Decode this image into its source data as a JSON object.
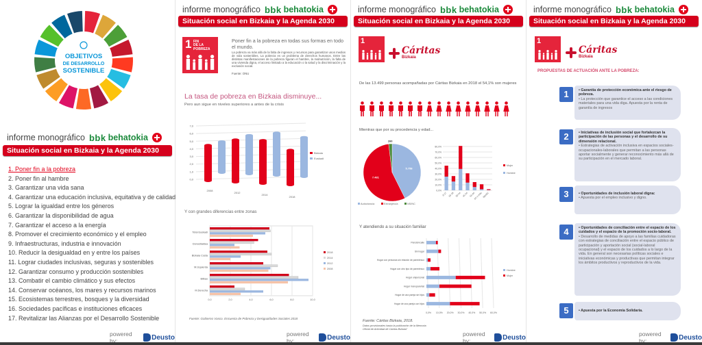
{
  "header": {
    "informe": "informe monográfico",
    "bbk": "bbk",
    "behatokia": "behatokia",
    "banner": "Situación social en Bizkaia y la Agenda 2030"
  },
  "powered": {
    "label": "powered by:",
    "logo": "Deusto",
    "logo_sub": "Business School"
  },
  "sdg_wheel": {
    "title": [
      "OBJETIVOS",
      "DE DESARROLLO",
      "SOSTENIBLE"
    ],
    "colors": [
      "#E5243B",
      "#DDA63A",
      "#4C9F38",
      "#C5192D",
      "#FF3A21",
      "#26BDE2",
      "#FCC30B",
      "#A21942",
      "#FD6925",
      "#DD1367",
      "#FD9D24",
      "#BF8B2E",
      "#3F7E44",
      "#0A97D9",
      "#56C02B",
      "#00689D",
      "#19486A"
    ]
  },
  "sdg_list": [
    "1.  Poner fin a la pobreza",
    "2.  Poner fin al hambre",
    "3.  Garantizar una vida sana",
    "4.  Garantizar una educación inclusiva, equitativa y de calidad",
    "5.  Lograr la igualdad entre los géneros",
    "6.  Garantizar la disponibilidad de agua",
    "7.  Garantizar el acceso a la energía",
    "8.  Promover el crecimiento económico y el empleo",
    "9.  Infraestructuras, industria e innovación",
    "10. Reducir la desigualdad en y entre los países",
    "11. Lograr ciudades inclusivas, seguras y sostenibles",
    "12. Garantizar consumo y producción sostenibles",
    "13. Combatir el cambio climático y sus efectos",
    "14. Conservar océanos, los mares y recursos marinos",
    "15. Ecosistemas terrestres, bosques y la diversidad",
    "16. Sociedades pacíficas e instituciones eficaces",
    "17. Revitalizar las Alianzas por el Desarrollo Sostenible"
  ],
  "sdg1_tile": {
    "number": "1",
    "label": [
      "FIN",
      "DE LA POBREZA"
    ]
  },
  "caritas": {
    "name": "Cáritas",
    "sub": "Bizkaia"
  },
  "panel2": {
    "intro_title": "Poner fin a la pobreza en todas sus formas en todo el mundo.",
    "intro_body": "La pobreza va más allá de la falta de ingresos y recursos para garantizar unos medios de vida sostenibles. La pobreza es un problema de derechos humanos. Entre las distintas manifestaciones de la pobreza figuran el hambre, la malnutrición, la falta de una vivienda digna, el acceso limitado a la educación o la salud y la discriminación y la exclusión social.",
    "intro_source": "Fuente: ONU",
    "headline": "La tasa de pobreza en Bizkaia disminuye...",
    "subheadline": "Pero aun sigue en niveles superiores a antes de la crisis",
    "zones_title": "Y con grandes diferencias entre zonas",
    "source": "Fuente: Gobierno Vasco. Encuesta de Pobreza y Desigualdades Sociales 2018"
  },
  "panel3": {
    "intro": "De las 13.499 personas acompañadas por Cáritas Bizkaia en 2018 el 54,1% son mujeres",
    "figures": {
      "men": 7,
      "women": 9
    },
    "origin_title": "Mientras que por su procedencia y edad...",
    "family_title": "Y atendiendo a su situación familiar",
    "source": "Fuente: Cáritas Bizkaia, 2018.",
    "source_note": "Datos provisionales hasta la publicación de la Memoria Oficial de Actividad de Cáritas Bizkaia\""
  },
  "panel4": {
    "title": "PROPUESTAS DE ACTUACIÓN ANTE LA POBREZA:",
    "proposals": [
      {
        "n": "1",
        "head": "• Garantía de protección económica ante el riesgo de pobreza.",
        "body": "• La protección que garantice el acceso a las condiciones materiales para una vida diga. Apuesta por la renta de garantía de ingresos"
      },
      {
        "n": "2",
        "head": "• Iniciativas de inclusión social que fortalezcan la participación de las personas y el desarrollo de su dimensión relacional.",
        "body": "• Estrategias de activación inclusiva en espacios sociales-ocupacionales-laborales que permitan a las personas aportar socialmente y generar reconocimiento más allá de su participación en el mercado laboral."
      },
      {
        "n": "3",
        "head": "• Oportunidades de inclusión laboral digna:",
        "body": "• Apuesta por el empleo inclusivo y digno."
      },
      {
        "n": "4",
        "head": "• Oportunidades de conciliación entre el espacio de los cuidados y el espacio de la promoción socio-laboral.",
        "body": "• Desarrollo de medidas de apoyo a las familias cuidadoras con estrategias de conciliación entre el espacio público de participación y aportación social (social-laboral ocupacional) y el espacio de los cuidados a lo largo de la vida. En general son necesarias políticas sociales e iniciativas económicas y productivas que permitan integrar los ámbitos productivos y reproductivos de la vida."
      },
      {
        "n": "5",
        "head": "• Apuesta por la Economía Solidaria.",
        "body": ""
      }
    ]
  },
  "chart_data": [
    {
      "id": "poverty_rate",
      "type": "bar",
      "categories": [
        "2008",
        "2012",
        "2014",
        "2018"
      ],
      "series": [
        {
          "name": "Bizkaia",
          "color": "#e2001a",
          "values": [
            5.0,
            5.9,
            6.0,
            4.9
          ]
        },
        {
          "name": "Euskadi",
          "color": "#9bb7e0",
          "values": [
            4.4,
            5.4,
            5.9,
            5.5
          ]
        }
      ],
      "ylim": [
        0,
        7
      ],
      "yticks": [
        "0,0",
        "1,0",
        "2,0",
        "3,0",
        "4,0",
        "5,0",
        "6,0",
        "7,0"
      ],
      "legend": "right"
    },
    {
      "id": "zones",
      "type": "bar",
      "orientation": "horizontal",
      "categories": [
        "Total Euskadi",
        "Donostialdea",
        "Bizkaia Costa",
        "M.Izquierda",
        "Bilbao",
        "M.Derecha"
      ],
      "series": [
        {
          "name": "2018",
          "color": "#d0021b",
          "values": [
            5.8,
            4.7,
            5.6,
            5.2,
            7.7,
            2.4
          ]
        },
        {
          "name": "2014",
          "color": "#d9d9d9",
          "values": [
            5.9,
            4.3,
            6.0,
            6.6,
            8.6,
            3.4
          ]
        },
        {
          "name": "2012",
          "color": "#9bb7e0",
          "values": [
            5.4,
            2.4,
            3.0,
            5.9,
            9.6,
            5.2
          ]
        },
        {
          "name": "2008",
          "color": "#f6c3a8",
          "values": [
            4.2,
            2.9,
            2.0,
            5.7,
            7.6,
            3.0
          ]
        }
      ],
      "xlim": [
        0,
        10
      ],
      "xticks": [
        "0,0",
        "2,0",
        "4,0",
        "6,0",
        "8,0",
        "10,0"
      ],
      "legend": "right"
    },
    {
      "id": "origin",
      "type": "pie",
      "labels": [
        "Autóctono/a",
        "Extranjero/a",
        "NS/NC"
      ],
      "values": [
        5758,
        7481,
        260
      ],
      "value_labels": [
        "5.758",
        "7.481",
        "260"
      ],
      "colors": [
        "#9bb7e0",
        "#e2001a",
        "#4c8a3c"
      ],
      "legend": "bottom"
    },
    {
      "id": "age",
      "type": "bar",
      "stacked": true,
      "categories": [
        "0-17",
        "18-29",
        "30-44",
        "45-54",
        "55-64",
        "65 o más",
        "NS/NC"
      ],
      "series": [
        {
          "name": "Hombre",
          "color": "#9bb7e0",
          "values": [
            25,
            16,
            39,
            14,
            6,
            2,
            0.5
          ]
        },
        {
          "name": "Mujer",
          "color": "#e2001a",
          "values": [
            20,
            10,
            42,
            17,
            9,
            9,
            1.5
          ]
        }
      ],
      "ylim": [
        0,
        80
      ],
      "yticks": [
        "0,0%",
        "10,0%",
        "20,0%",
        "30,0%",
        "40,0%",
        "50,0%",
        "60,0%",
        "70,0%",
        "80,0%"
      ],
      "legend": "right"
    },
    {
      "id": "family",
      "type": "bar",
      "orientation": "horizontal",
      "stacked": true,
      "categories": [
        "Pensión/calle",
        "Sin hogar",
        "Hogar con personas sin relación de parentesco",
        "Hogar con otro tipo de parentesco",
        "Hogar unipersonal",
        "Hogar monoparental",
        "Hogar de una pareja sin hijos",
        "Hogar de una pareja con hijos"
      ],
      "series": [
        {
          "name": "Hombre",
          "color": "#9bb7e0",
          "values": [
            8.8,
            11.0,
            1.3,
            3.8,
            27.0,
            12.0,
            2.7,
            21.7
          ]
        },
        {
          "name": "Mujer",
          "color": "#e2001a",
          "values": [
            1.7,
            2.5,
            2.5,
            8.2,
            27.0,
            29.5,
            5.3,
            27.3
          ]
        }
      ],
      "xlim": [
        0,
        60
      ],
      "xticks": [
        "0,0%",
        "10,0%",
        "20,0%",
        "30,0%",
        "40,0%",
        "50,0%",
        "60,0%"
      ],
      "legend": "right"
    }
  ]
}
